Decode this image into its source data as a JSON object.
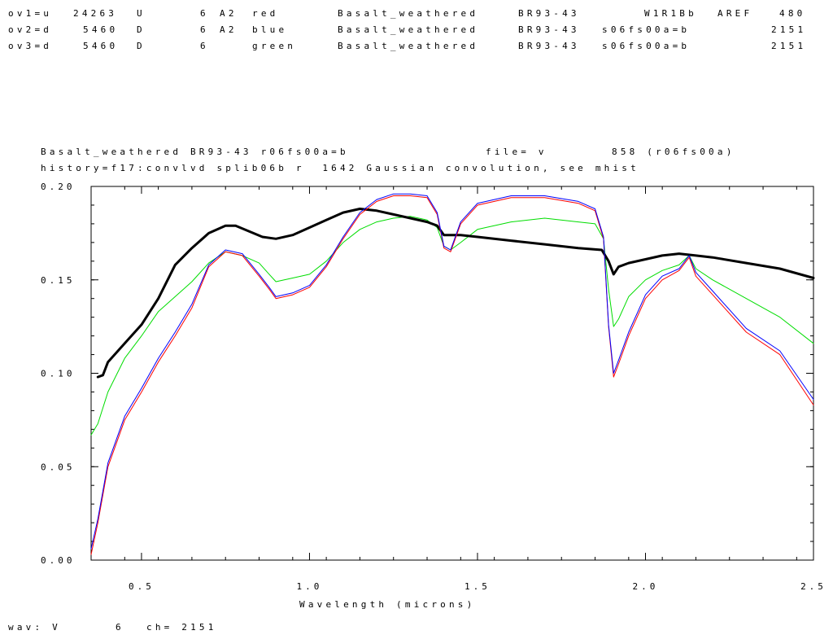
{
  "header": {
    "rows": [
      [
        "ov1=u",
        "24263",
        "U",
        "6",
        "A2",
        "red",
        "Basalt_weathered",
        "BR93-43",
        "",
        "W1R1Bb",
        "AREF",
        "480"
      ],
      [
        "ov2=d",
        "5460",
        "D",
        "6",
        "A2",
        "blue",
        "Basalt_weathered",
        "BR93-43",
        "s06fs00a=b",
        "",
        "",
        "2151"
      ],
      [
        "ov3=d",
        "5460",
        "D",
        "6",
        "",
        "green",
        "Basalt_weathered",
        "BR93-43",
        "s06fs00a=b",
        "",
        "",
        "2151"
      ]
    ]
  },
  "plot_header": {
    "name": "Basalt_weathered BR93-43 r06fs00a=b",
    "file": "file= v",
    "filenum": "858 (r06fs00a)",
    "history": "history=f17:convlvd splib06b r  1642 Gaussian convolution, see mhist"
  },
  "footer": {
    "wav": "wav: V",
    "wav_num": "6",
    "ch": "ch= 2151"
  },
  "colors": {
    "black_series": "#000000",
    "red_series": "#ff0000",
    "blue_series": "#0000ff",
    "green_series": "#00dd00",
    "axes": "#000000",
    "background": "#ffffff"
  },
  "chart_data": {
    "type": "line",
    "title": "",
    "xlabel": "Wavelength (microns)",
    "ylabel": "",
    "xlim": [
      0.35,
      2.5
    ],
    "ylim": [
      0.0,
      0.2
    ],
    "x_ticks": [
      {
        "v": 0.5,
        "label": "0.5"
      },
      {
        "v": 1.0,
        "label": "1.0"
      },
      {
        "v": 1.5,
        "label": "1.5"
      },
      {
        "v": 2.0,
        "label": "2.0"
      },
      {
        "v": 2.5,
        "label": "2.5"
      }
    ],
    "y_ticks": [
      {
        "v": 0.0,
        "label": "0.00"
      },
      {
        "v": 0.05,
        "label": "0.05"
      },
      {
        "v": 0.1,
        "label": "0.10"
      },
      {
        "v": 0.15,
        "label": "0.15"
      },
      {
        "v": 0.2,
        "label": "0.20"
      }
    ],
    "grid": false,
    "series": [
      {
        "color": "#000000",
        "width": 3,
        "x": [
          0.37,
          0.385,
          0.4,
          0.45,
          0.5,
          0.55,
          0.6,
          0.65,
          0.7,
          0.75,
          0.78,
          0.82,
          0.86,
          0.9,
          0.95,
          1.0,
          1.05,
          1.1,
          1.15,
          1.2,
          1.25,
          1.3,
          1.35,
          1.38,
          1.4,
          1.42,
          1.45,
          1.5,
          1.6,
          1.7,
          1.8,
          1.87,
          1.89,
          1.905,
          1.92,
          1.95,
          2.0,
          2.05,
          2.1,
          2.15,
          2.2,
          2.3,
          2.4,
          2.5
        ],
        "y": [
          0.098,
          0.099,
          0.106,
          0.116,
          0.126,
          0.14,
          0.158,
          0.167,
          0.175,
          0.179,
          0.179,
          0.176,
          0.173,
          0.172,
          0.174,
          0.178,
          0.182,
          0.186,
          0.188,
          0.187,
          0.185,
          0.183,
          0.181,
          0.179,
          0.174,
          0.174,
          0.174,
          0.173,
          0.171,
          0.169,
          0.167,
          0.166,
          0.16,
          0.153,
          0.157,
          0.159,
          0.161,
          0.163,
          0.164,
          0.163,
          0.162,
          0.159,
          0.156,
          0.151
        ]
      },
      {
        "color": "#00dd00",
        "width": 1,
        "x": [
          0.35,
          0.37,
          0.4,
          0.45,
          0.5,
          0.55,
          0.6,
          0.65,
          0.7,
          0.75,
          0.8,
          0.85,
          0.88,
          0.9,
          0.95,
          1.0,
          1.05,
          1.1,
          1.15,
          1.2,
          1.25,
          1.3,
          1.35,
          1.38,
          1.4,
          1.42,
          1.45,
          1.5,
          1.6,
          1.7,
          1.8,
          1.85,
          1.875,
          1.89,
          1.905,
          1.92,
          1.95,
          2.0,
          2.05,
          2.1,
          2.13,
          2.15,
          2.2,
          2.3,
          2.4,
          2.5
        ],
        "y": [
          0.067,
          0.073,
          0.09,
          0.108,
          0.12,
          0.133,
          0.141,
          0.149,
          0.159,
          0.165,
          0.163,
          0.159,
          0.153,
          0.149,
          0.151,
          0.153,
          0.16,
          0.17,
          0.177,
          0.181,
          0.183,
          0.184,
          0.182,
          0.178,
          0.168,
          0.166,
          0.17,
          0.177,
          0.181,
          0.183,
          0.181,
          0.18,
          0.172,
          0.145,
          0.125,
          0.129,
          0.141,
          0.15,
          0.155,
          0.158,
          0.163,
          0.156,
          0.15,
          0.14,
          0.13,
          0.116
        ]
      },
      {
        "color": "#ff0000",
        "width": 1,
        "x": [
          0.35,
          0.37,
          0.4,
          0.45,
          0.5,
          0.55,
          0.6,
          0.65,
          0.7,
          0.75,
          0.8,
          0.85,
          0.88,
          0.9,
          0.95,
          1.0,
          1.05,
          1.1,
          1.15,
          1.2,
          1.25,
          1.3,
          1.35,
          1.38,
          1.4,
          1.42,
          1.45,
          1.5,
          1.6,
          1.7,
          1.8,
          1.85,
          1.875,
          1.89,
          1.905,
          1.92,
          1.95,
          2.0,
          2.05,
          2.1,
          2.13,
          2.15,
          2.2,
          2.3,
          2.4,
          2.5
        ],
        "y": [
          0.003,
          0.02,
          0.05,
          0.075,
          0.09,
          0.106,
          0.12,
          0.135,
          0.157,
          0.165,
          0.163,
          0.152,
          0.145,
          0.14,
          0.142,
          0.146,
          0.157,
          0.172,
          0.185,
          0.192,
          0.195,
          0.195,
          0.194,
          0.185,
          0.167,
          0.165,
          0.18,
          0.19,
          0.194,
          0.194,
          0.191,
          0.187,
          0.172,
          0.125,
          0.098,
          0.105,
          0.12,
          0.14,
          0.15,
          0.155,
          0.162,
          0.152,
          0.142,
          0.122,
          0.11,
          0.083
        ]
      },
      {
        "color": "#0000ff",
        "width": 1,
        "x": [
          0.35,
          0.37,
          0.4,
          0.45,
          0.5,
          0.55,
          0.6,
          0.65,
          0.7,
          0.75,
          0.8,
          0.85,
          0.88,
          0.9,
          0.95,
          1.0,
          1.05,
          1.1,
          1.15,
          1.2,
          1.25,
          1.3,
          1.35,
          1.38,
          1.4,
          1.42,
          1.45,
          1.5,
          1.6,
          1.7,
          1.8,
          1.85,
          1.875,
          1.89,
          1.905,
          1.92,
          1.95,
          2.0,
          2.05,
          2.1,
          2.13,
          2.15,
          2.2,
          2.3,
          2.4,
          2.5
        ],
        "y": [
          0.006,
          0.022,
          0.052,
          0.077,
          0.092,
          0.108,
          0.122,
          0.137,
          0.158,
          0.166,
          0.164,
          0.153,
          0.146,
          0.141,
          0.143,
          0.147,
          0.158,
          0.173,
          0.186,
          0.193,
          0.196,
          0.196,
          0.195,
          0.186,
          0.168,
          0.166,
          0.181,
          0.191,
          0.195,
          0.195,
          0.192,
          0.188,
          0.173,
          0.126,
          0.1,
          0.107,
          0.122,
          0.142,
          0.152,
          0.156,
          0.163,
          0.154,
          0.144,
          0.124,
          0.112,
          0.086
        ]
      }
    ]
  }
}
